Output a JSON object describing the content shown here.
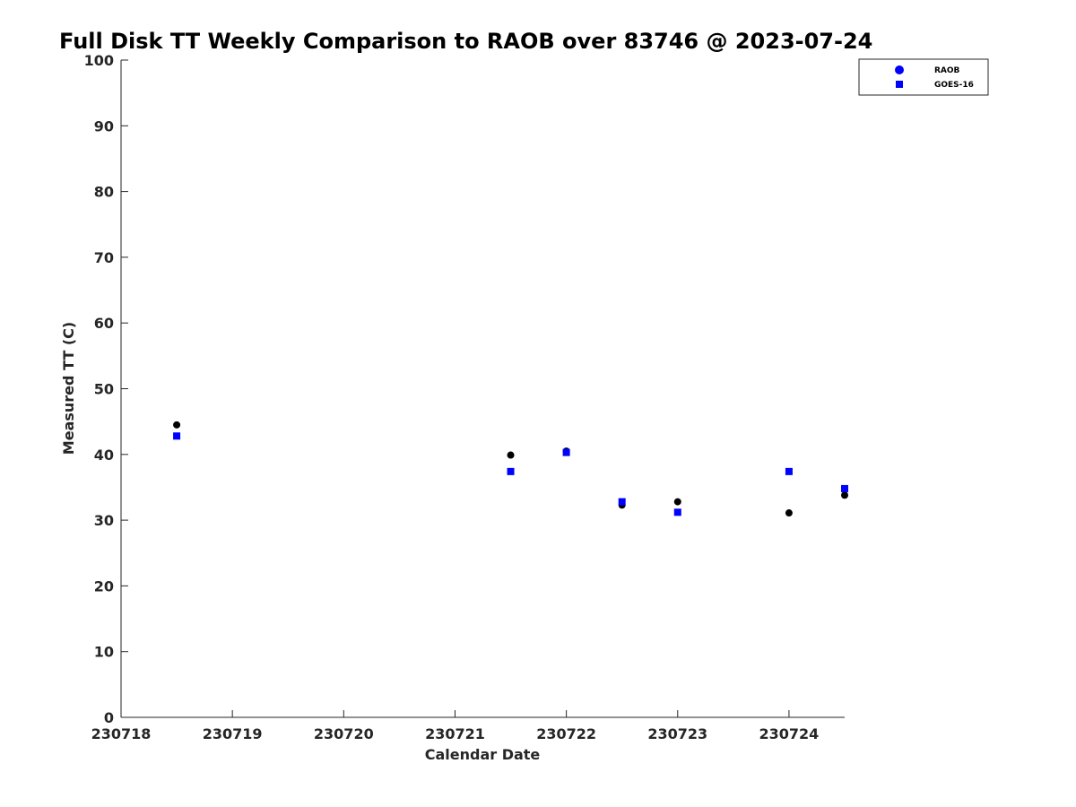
{
  "chart_data": {
    "type": "scatter",
    "title": "Full Disk TT Weekly Comparison to RAOB over 83746 @ 2023-07-24",
    "xlabel": "Calendar Date",
    "ylabel": "Measured TT (C)",
    "x_ticks": [
      "230718",
      "230719",
      "230720",
      "230721",
      "230722",
      "230723",
      "230724"
    ],
    "y_ticks": [
      "0",
      "10",
      "20",
      "30",
      "40",
      "50",
      "60",
      "70",
      "80",
      "90",
      "100"
    ],
    "xlim": [
      "230718",
      "230724 12Z"
    ],
    "ylim": [
      0,
      100
    ],
    "grid": false,
    "legend_position": "top-right",
    "series": [
      {
        "name": "RAOB",
        "marker": "circle",
        "color": "#000000",
        "legend_color": "#0000ff",
        "points": [
          {
            "x": "230718 12Z",
            "y": 44.5
          },
          {
            "x": "230721 12Z",
            "y": 39.9
          },
          {
            "x": "230722 00Z",
            "y": 40.5
          },
          {
            "x": "230722 12Z",
            "y": 32.3
          },
          {
            "x": "230723 00Z",
            "y": 32.8
          },
          {
            "x": "230724 00Z",
            "y": 31.1
          },
          {
            "x": "230724 12Z",
            "y": 33.8
          }
        ]
      },
      {
        "name": "GOES-16",
        "marker": "square",
        "color": "#0000ff",
        "legend_color": "#0000ff",
        "points": [
          {
            "x": "230718 12Z",
            "y": 42.8
          },
          {
            "x": "230721 12Z",
            "y": 37.4
          },
          {
            "x": "230722 00Z",
            "y": 40.3
          },
          {
            "x": "230722 12Z",
            "y": 32.8
          },
          {
            "x": "230723 00Z",
            "y": 31.2
          },
          {
            "x": "230724 00Z",
            "y": 37.4
          },
          {
            "x": "230724 12Z",
            "y": 34.8
          }
        ]
      }
    ]
  }
}
